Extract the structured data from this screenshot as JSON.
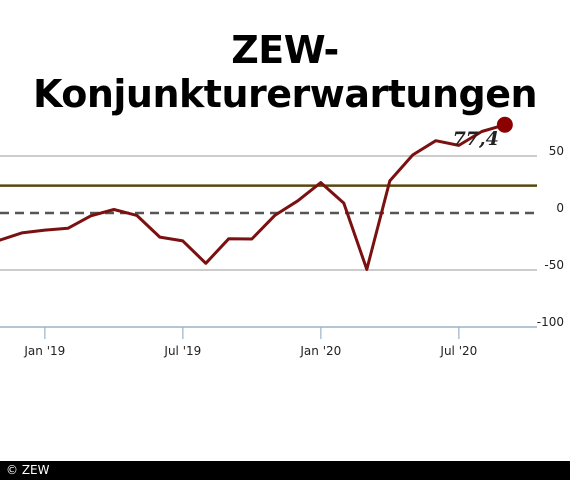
{
  "title": "ZEW-Konjunkturerwartungen",
  "footer": "© ZEW",
  "colors": {
    "series": "#7a1010",
    "reference_line": "#5a4610",
    "zero_line": "#555555",
    "grid": "#bbbbbb",
    "axis": "#9bb3c8",
    "end_marker": "#8b0000"
  },
  "chart_data": {
    "type": "line",
    "title": "ZEW-Konjunkturerwartungen",
    "xlabel": "",
    "ylabel": "",
    "ylim": [
      -100,
      80
    ],
    "y_ticks": [
      50,
      0,
      -50,
      -100
    ],
    "x_ticks": [
      "Jan '19",
      "Jul '19",
      "Jan '20",
      "Jul '20"
    ],
    "x": [
      "2018-11",
      "2018-12",
      "2019-01",
      "2019-02",
      "2019-03",
      "2019-04",
      "2019-05",
      "2019-06",
      "2019-07",
      "2019-08",
      "2019-09",
      "2019-10",
      "2019-11",
      "2019-12",
      "2020-01",
      "2020-02",
      "2020-03",
      "2020-04",
      "2020-05",
      "2020-06",
      "2020-07",
      "2020-08",
      "2020-09"
    ],
    "series": [
      {
        "values": [
          -24.1,
          -17.5,
          -15.0,
          -13.4,
          -2.5,
          3.1,
          -2.1,
          -21.1,
          -24.5,
          -44.1,
          -22.5,
          -22.8,
          -2.1,
          10.7,
          26.7,
          8.7,
          -49.5,
          28.2,
          51.0,
          63.4,
          59.3,
          71.5,
          77.4
        ]
      }
    ],
    "reference_line": 24,
    "end_label": "77,4",
    "end_marker": true,
    "grid": true
  }
}
